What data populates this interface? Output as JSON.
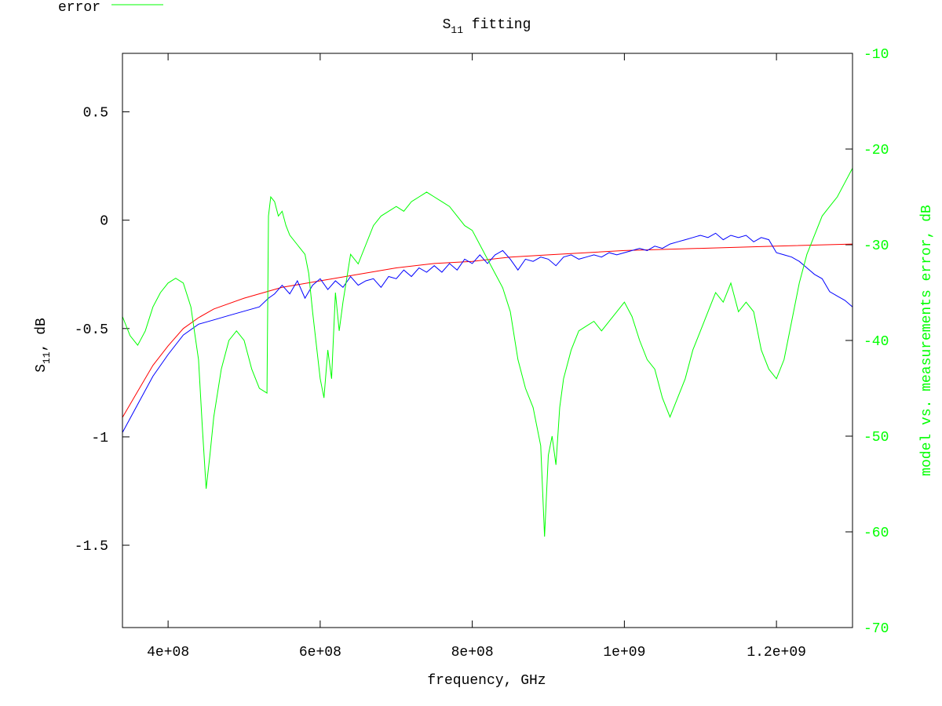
{
  "chart_data": {
    "type": "line",
    "title": "S",
    "title_sub": "11",
    "title_rest": " fitting",
    "xlabel": "frequency, GHz",
    "ylabel_main": "S",
    "ylabel_sub": "11",
    "ylabel_rest": ", dB",
    "y2label": "model vs. measurements error, dB",
    "xlim": [
      340000000,
      1300000000
    ],
    "ylim": [
      -1.88,
      0.77
    ],
    "y2lim": [
      -70,
      -10
    ],
    "x_ticks": [
      {
        "value": 400000000,
        "label": "4e+08"
      },
      {
        "value": 600000000,
        "label": "6e+08"
      },
      {
        "value": 800000000,
        "label": "8e+08"
      },
      {
        "value": 1000000000,
        "label": "1e+09"
      },
      {
        "value": 1200000000,
        "label": "1.2e+09"
      }
    ],
    "y_ticks": [
      {
        "value": 0.5,
        "label": "0.5"
      },
      {
        "value": 0,
        "label": "0"
      },
      {
        "value": -0.5,
        "label": "-0.5"
      },
      {
        "value": -1,
        "label": "-1"
      },
      {
        "value": -1.5,
        "label": "-1.5"
      }
    ],
    "y2_ticks": [
      {
        "value": -10,
        "label": "-10"
      },
      {
        "value": -20,
        "label": "-20"
      },
      {
        "value": -30,
        "label": "-30"
      },
      {
        "value": -40,
        "label": "-40"
      },
      {
        "value": -50,
        "label": "-50"
      },
      {
        "value": -60,
        "label": "-60"
      },
      {
        "value": -70,
        "label": "-70"
      }
    ],
    "legend": {
      "placement": "top-left",
      "entries": [
        "error"
      ]
    },
    "grid": false,
    "series": [
      {
        "name": "",
        "axis": "y",
        "color": "#ff0000",
        "points": [
          [
            340000000,
            -0.91
          ],
          [
            360000000,
            -0.79
          ],
          [
            380000000,
            -0.67
          ],
          [
            400000000,
            -0.58
          ],
          [
            420000000,
            -0.5
          ],
          [
            440000000,
            -0.45
          ],
          [
            460000000,
            -0.41
          ],
          [
            500000000,
            -0.36
          ],
          [
            550000000,
            -0.31
          ],
          [
            600000000,
            -0.28
          ],
          [
            650000000,
            -0.25
          ],
          [
            700000000,
            -0.22
          ],
          [
            750000000,
            -0.2
          ],
          [
            800000000,
            -0.19
          ],
          [
            850000000,
            -0.17
          ],
          [
            900000000,
            -0.16
          ],
          [
            1000000000,
            -0.14
          ],
          [
            1100000000,
            -0.13
          ],
          [
            1200000000,
            -0.12
          ],
          [
            1300000000,
            -0.11
          ]
        ]
      },
      {
        "name": "",
        "axis": "y",
        "color": "#0000ff",
        "points": [
          [
            340000000,
            -0.98
          ],
          [
            360000000,
            -0.85
          ],
          [
            380000000,
            -0.72
          ],
          [
            400000000,
            -0.62
          ],
          [
            420000000,
            -0.53
          ],
          [
            440000000,
            -0.48
          ],
          [
            460000000,
            -0.46
          ],
          [
            480000000,
            -0.44
          ],
          [
            500000000,
            -0.42
          ],
          [
            520000000,
            -0.4
          ],
          [
            532000000,
            -0.36
          ],
          [
            540000000,
            -0.34
          ],
          [
            550000000,
            -0.3
          ],
          [
            560000000,
            -0.34
          ],
          [
            570000000,
            -0.28
          ],
          [
            580000000,
            -0.36
          ],
          [
            590000000,
            -0.3
          ],
          [
            600000000,
            -0.27
          ],
          [
            610000000,
            -0.32
          ],
          [
            620000000,
            -0.28
          ],
          [
            630000000,
            -0.31
          ],
          [
            640000000,
            -0.26
          ],
          [
            650000000,
            -0.3
          ],
          [
            660000000,
            -0.28
          ],
          [
            670000000,
            -0.27
          ],
          [
            680000000,
            -0.31
          ],
          [
            690000000,
            -0.26
          ],
          [
            700000000,
            -0.27
          ],
          [
            710000000,
            -0.23
          ],
          [
            720000000,
            -0.26
          ],
          [
            730000000,
            -0.22
          ],
          [
            740000000,
            -0.24
          ],
          [
            750000000,
            -0.21
          ],
          [
            760000000,
            -0.24
          ],
          [
            770000000,
            -0.2
          ],
          [
            780000000,
            -0.23
          ],
          [
            790000000,
            -0.18
          ],
          [
            800000000,
            -0.2
          ],
          [
            810000000,
            -0.16
          ],
          [
            820000000,
            -0.2
          ],
          [
            830000000,
            -0.16
          ],
          [
            840000000,
            -0.14
          ],
          [
            850000000,
            -0.18
          ],
          [
            860000000,
            -0.23
          ],
          [
            870000000,
            -0.18
          ],
          [
            880000000,
            -0.19
          ],
          [
            890000000,
            -0.17
          ],
          [
            900000000,
            -0.18
          ],
          [
            910000000,
            -0.21
          ],
          [
            920000000,
            -0.17
          ],
          [
            930000000,
            -0.16
          ],
          [
            940000000,
            -0.18
          ],
          [
            950000000,
            -0.17
          ],
          [
            960000000,
            -0.16
          ],
          [
            970000000,
            -0.17
          ],
          [
            980000000,
            -0.15
          ],
          [
            990000000,
            -0.16
          ],
          [
            1000000000,
            -0.15
          ],
          [
            1010000000,
            -0.14
          ],
          [
            1020000000,
            -0.13
          ],
          [
            1030000000,
            -0.14
          ],
          [
            1040000000,
            -0.12
          ],
          [
            1050000000,
            -0.13
          ],
          [
            1060000000,
            -0.11
          ],
          [
            1070000000,
            -0.1
          ],
          [
            1080000000,
            -0.09
          ],
          [
            1090000000,
            -0.08
          ],
          [
            1100000000,
            -0.07
          ],
          [
            1110000000,
            -0.08
          ],
          [
            1120000000,
            -0.06
          ],
          [
            1130000000,
            -0.09
          ],
          [
            1140000000,
            -0.07
          ],
          [
            1150000000,
            -0.08
          ],
          [
            1160000000,
            -0.07
          ],
          [
            1170000000,
            -0.1
          ],
          [
            1180000000,
            -0.08
          ],
          [
            1190000000,
            -0.09
          ],
          [
            1200000000,
            -0.15
          ],
          [
            1210000000,
            -0.16
          ],
          [
            1220000000,
            -0.17
          ],
          [
            1230000000,
            -0.19
          ],
          [
            1240000000,
            -0.22
          ],
          [
            1250000000,
            -0.25
          ],
          [
            1260000000,
            -0.27
          ],
          [
            1270000000,
            -0.33
          ],
          [
            1280000000,
            -0.35
          ],
          [
            1290000000,
            -0.37
          ],
          [
            1300000000,
            -0.4
          ]
        ]
      },
      {
        "name": "error",
        "axis": "y2",
        "color": "#00ff00",
        "points": [
          [
            340000000,
            -37.5
          ],
          [
            350000000,
            -39.5
          ],
          [
            360000000,
            -40.5
          ],
          [
            370000000,
            -39
          ],
          [
            380000000,
            -36.5
          ],
          [
            390000000,
            -35
          ],
          [
            400000000,
            -34
          ],
          [
            410000000,
            -33.5
          ],
          [
            420000000,
            -34
          ],
          [
            430000000,
            -36.5
          ],
          [
            440000000,
            -42
          ],
          [
            445000000,
            -49
          ],
          [
            450000000,
            -55.5
          ],
          [
            455000000,
            -52
          ],
          [
            460000000,
            -48
          ],
          [
            470000000,
            -43
          ],
          [
            480000000,
            -40
          ],
          [
            490000000,
            -39
          ],
          [
            500000000,
            -40
          ],
          [
            510000000,
            -43
          ],
          [
            520000000,
            -45
          ],
          [
            530000000,
            -45.5
          ],
          [
            532000000,
            -27
          ],
          [
            535000000,
            -25
          ],
          [
            540000000,
            -25.5
          ],
          [
            545000000,
            -27
          ],
          [
            550000000,
            -26.5
          ],
          [
            555000000,
            -28
          ],
          [
            560000000,
            -29
          ],
          [
            570000000,
            -30
          ],
          [
            580000000,
            -31
          ],
          [
            585000000,
            -33
          ],
          [
            590000000,
            -37
          ],
          [
            600000000,
            -44
          ],
          [
            605000000,
            -46
          ],
          [
            610000000,
            -41
          ],
          [
            615000000,
            -44
          ],
          [
            620000000,
            -35
          ],
          [
            625000000,
            -39
          ],
          [
            630000000,
            -36
          ],
          [
            640000000,
            -31
          ],
          [
            650000000,
            -32
          ],
          [
            660000000,
            -30
          ],
          [
            670000000,
            -28
          ],
          [
            680000000,
            -27
          ],
          [
            700000000,
            -26
          ],
          [
            710000000,
            -26.5
          ],
          [
            720000000,
            -25.5
          ],
          [
            730000000,
            -25
          ],
          [
            740000000,
            -24.5
          ],
          [
            750000000,
            -25
          ],
          [
            760000000,
            -25.5
          ],
          [
            770000000,
            -26
          ],
          [
            780000000,
            -27
          ],
          [
            790000000,
            -28
          ],
          [
            800000000,
            -28.5
          ],
          [
            810000000,
            -30
          ],
          [
            820000000,
            -31.5
          ],
          [
            830000000,
            -33
          ],
          [
            840000000,
            -34.5
          ],
          [
            850000000,
            -37
          ],
          [
            860000000,
            -42
          ],
          [
            870000000,
            -45
          ],
          [
            880000000,
            -47
          ],
          [
            890000000,
            -51
          ],
          [
            895000000,
            -60.5
          ],
          [
            900000000,
            -52
          ],
          [
            905000000,
            -50
          ],
          [
            910000000,
            -53
          ],
          [
            915000000,
            -47
          ],
          [
            920000000,
            -44
          ],
          [
            930000000,
            -41
          ],
          [
            940000000,
            -39
          ],
          [
            950000000,
            -38.5
          ],
          [
            960000000,
            -38
          ],
          [
            970000000,
            -39
          ],
          [
            980000000,
            -38
          ],
          [
            990000000,
            -37
          ],
          [
            1000000000,
            -36
          ],
          [
            1010000000,
            -37.5
          ],
          [
            1020000000,
            -40
          ],
          [
            1030000000,
            -42
          ],
          [
            1040000000,
            -43
          ],
          [
            1050000000,
            -46
          ],
          [
            1060000000,
            -48
          ],
          [
            1070000000,
            -46
          ],
          [
            1080000000,
            -44
          ],
          [
            1090000000,
            -41
          ],
          [
            1100000000,
            -39
          ],
          [
            1110000000,
            -37
          ],
          [
            1120000000,
            -35
          ],
          [
            1130000000,
            -36
          ],
          [
            1140000000,
            -34
          ],
          [
            1150000000,
            -37
          ],
          [
            1160000000,
            -36
          ],
          [
            1170000000,
            -37
          ],
          [
            1180000000,
            -41
          ],
          [
            1190000000,
            -43
          ],
          [
            1200000000,
            -44
          ],
          [
            1210000000,
            -42
          ],
          [
            1220000000,
            -38
          ],
          [
            1230000000,
            -34
          ],
          [
            1240000000,
            -31
          ],
          [
            1250000000,
            -29
          ],
          [
            1260000000,
            -27
          ],
          [
            1270000000,
            -26
          ],
          [
            1280000000,
            -25
          ],
          [
            1290000000,
            -23.5
          ],
          [
            1300000000,
            -22
          ]
        ]
      }
    ]
  }
}
